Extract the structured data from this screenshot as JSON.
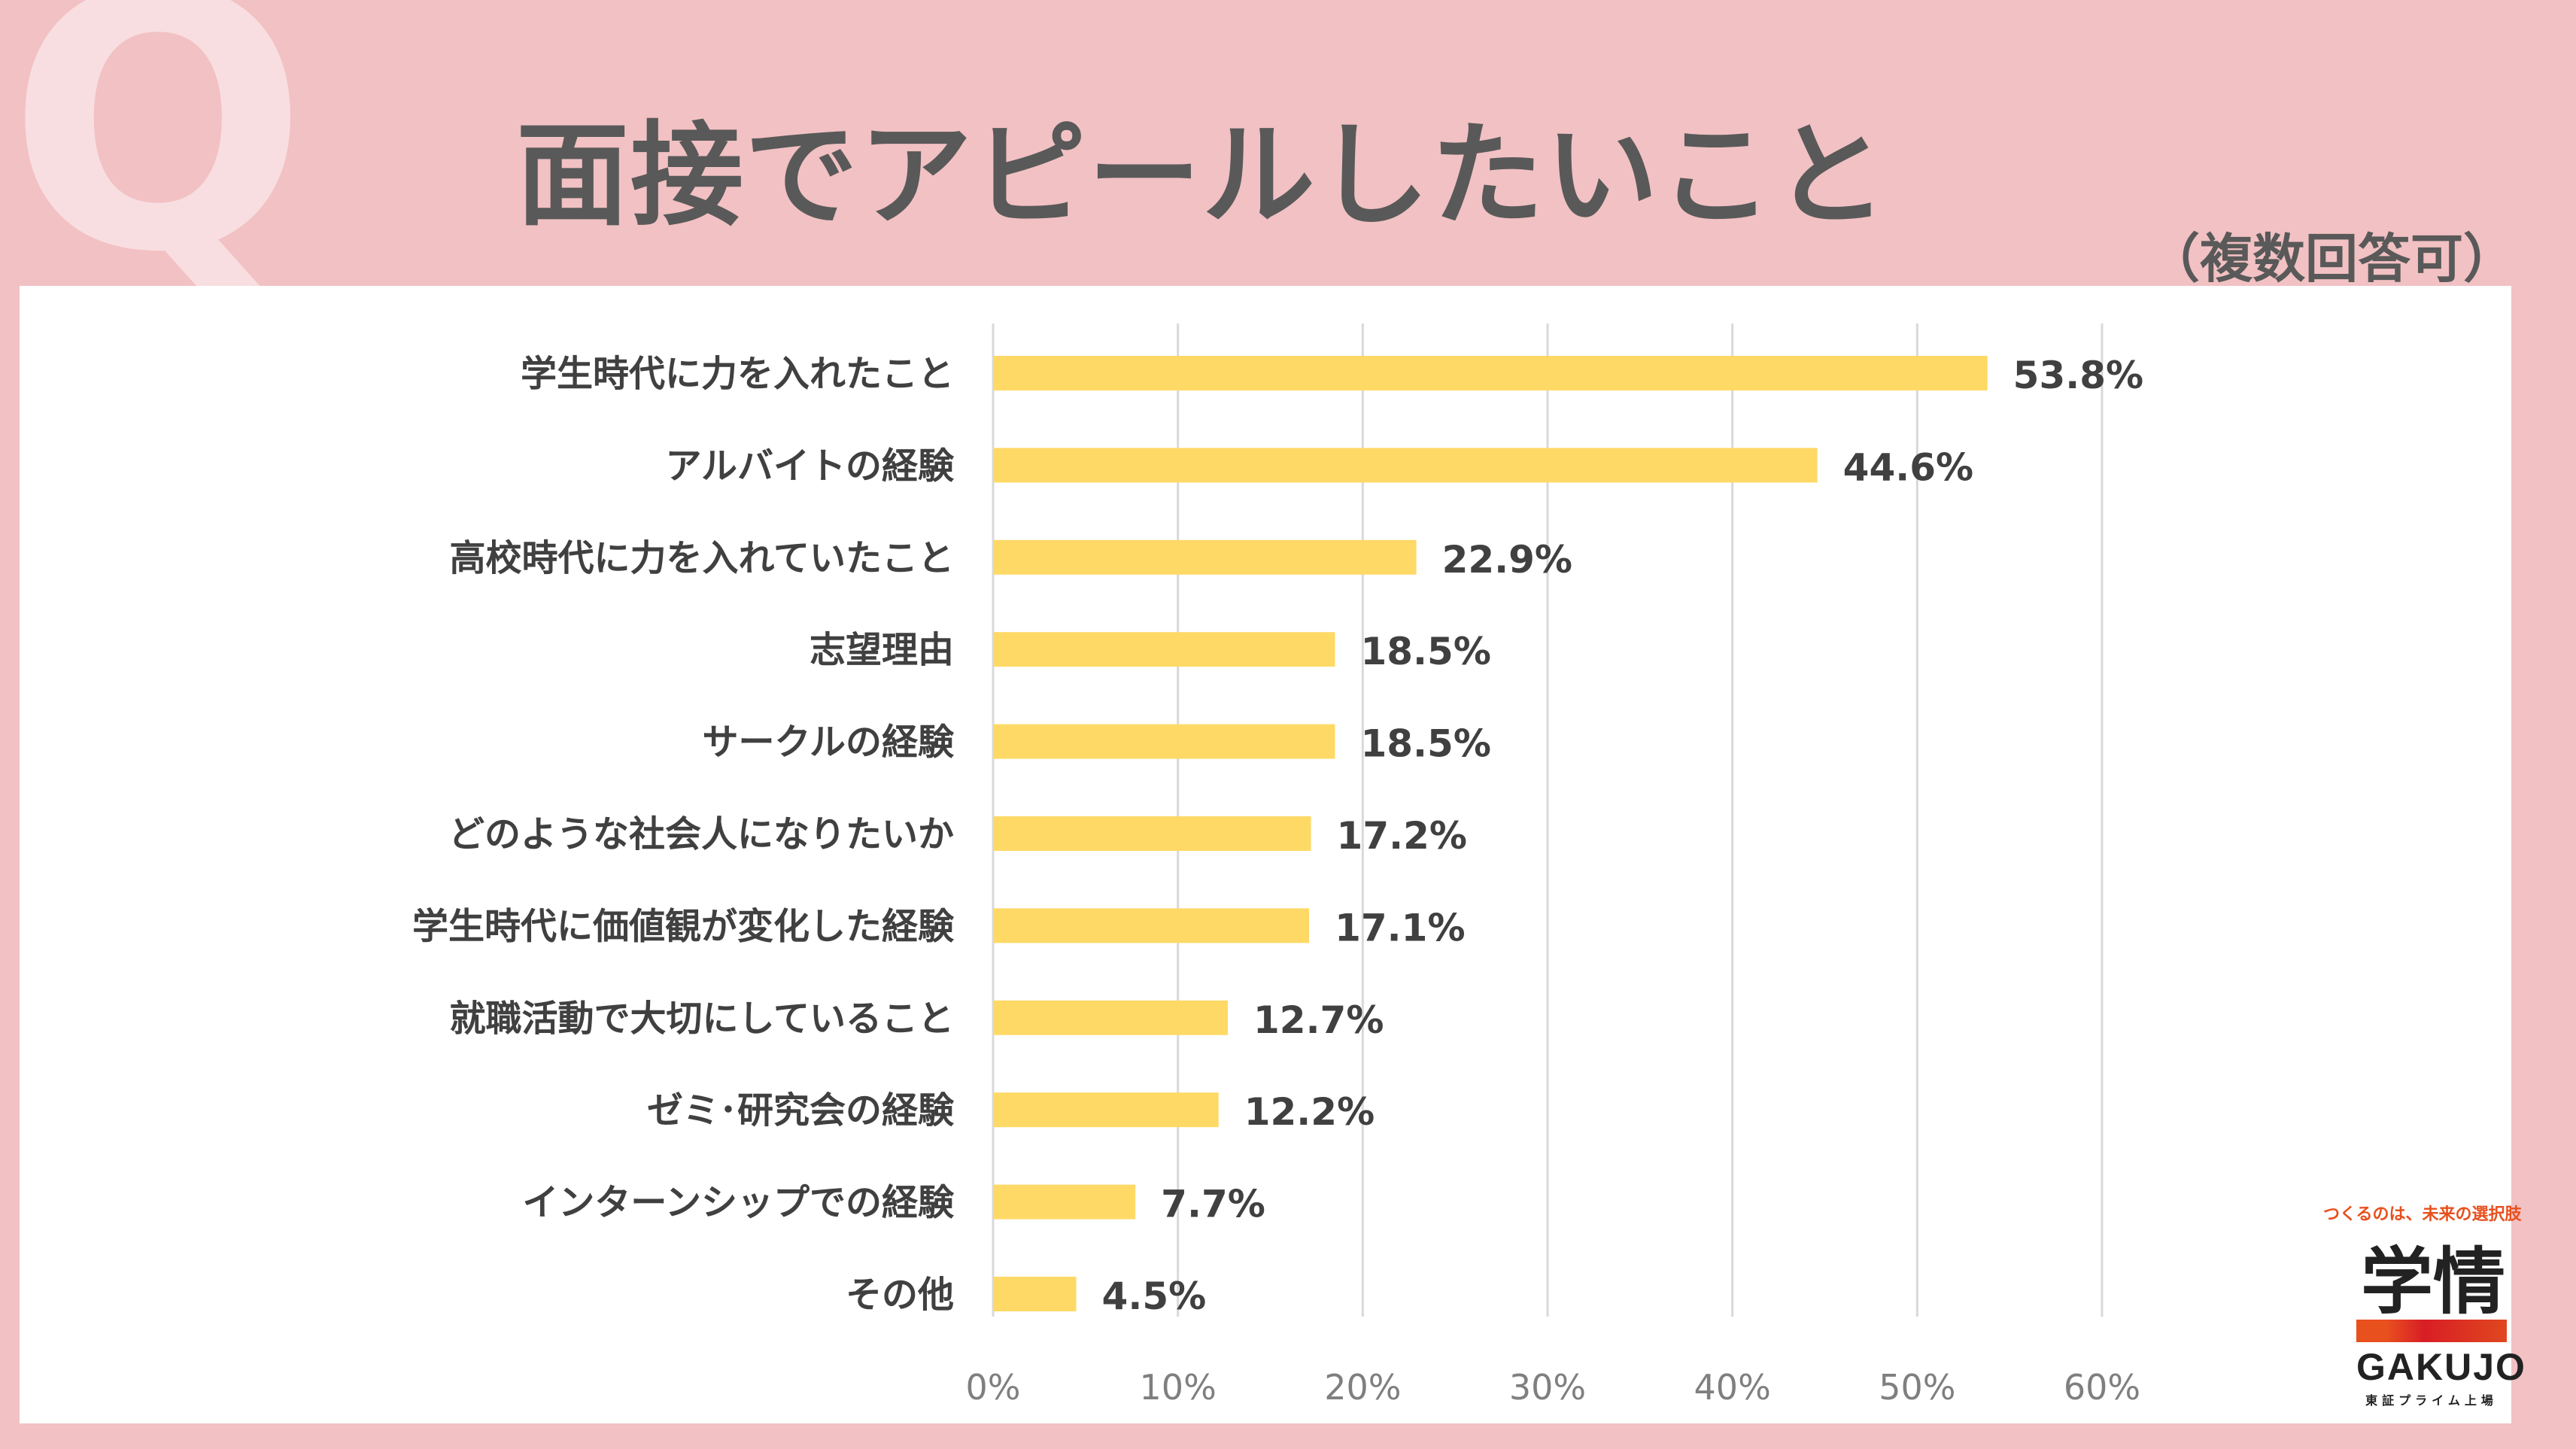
{
  "header": {
    "q_mark": "Q",
    "title": "面接でアピールしたいこと",
    "subtitle": "（複数回答可）"
  },
  "logo": {
    "tagline": "つくるのは、未来の選択肢",
    "mark": "学情",
    "brand": "GAKUJO",
    "listed": "東証プライム上場"
  },
  "colors": {
    "background": "#F2C1C3",
    "bar": "#FFD966",
    "grid": "#D9D9D9",
    "text": "#404040",
    "axis_text": "#7F7F7F"
  },
  "chart_data": {
    "type": "bar",
    "orientation": "horizontal",
    "title": "面接でアピールしたいこと",
    "categories": [
      "学生時代に力を入れたこと",
      "アルバイトの経験",
      "高校時代に力を入れていたこと",
      "志望理由",
      "サークルの経験",
      "どのような社会人になりたいか",
      "学生時代に価値観が変化した経験",
      "就職活動で大切にしていること",
      "ゼミ･研究会の経験",
      "インターンシップでの経験",
      "その他"
    ],
    "values": [
      53.8,
      44.6,
      22.9,
      18.5,
      18.5,
      17.2,
      17.1,
      12.7,
      12.2,
      7.7,
      4.5
    ],
    "value_labels": [
      "53.8%",
      "44.6%",
      "22.9%",
      "18.5%",
      "18.5%",
      "17.2%",
      "17.1%",
      "12.7%",
      "12.2%",
      "7.7%",
      "4.5%"
    ],
    "xlim": [
      0,
      60
    ],
    "xticks": [
      0,
      10,
      20,
      30,
      40,
      50,
      60
    ],
    "xtick_labels": [
      "0%",
      "10%",
      "20%",
      "30%",
      "40%",
      "50%",
      "60%"
    ],
    "xlabel": "",
    "ylabel": "",
    "grid": true,
    "legend": "none"
  }
}
